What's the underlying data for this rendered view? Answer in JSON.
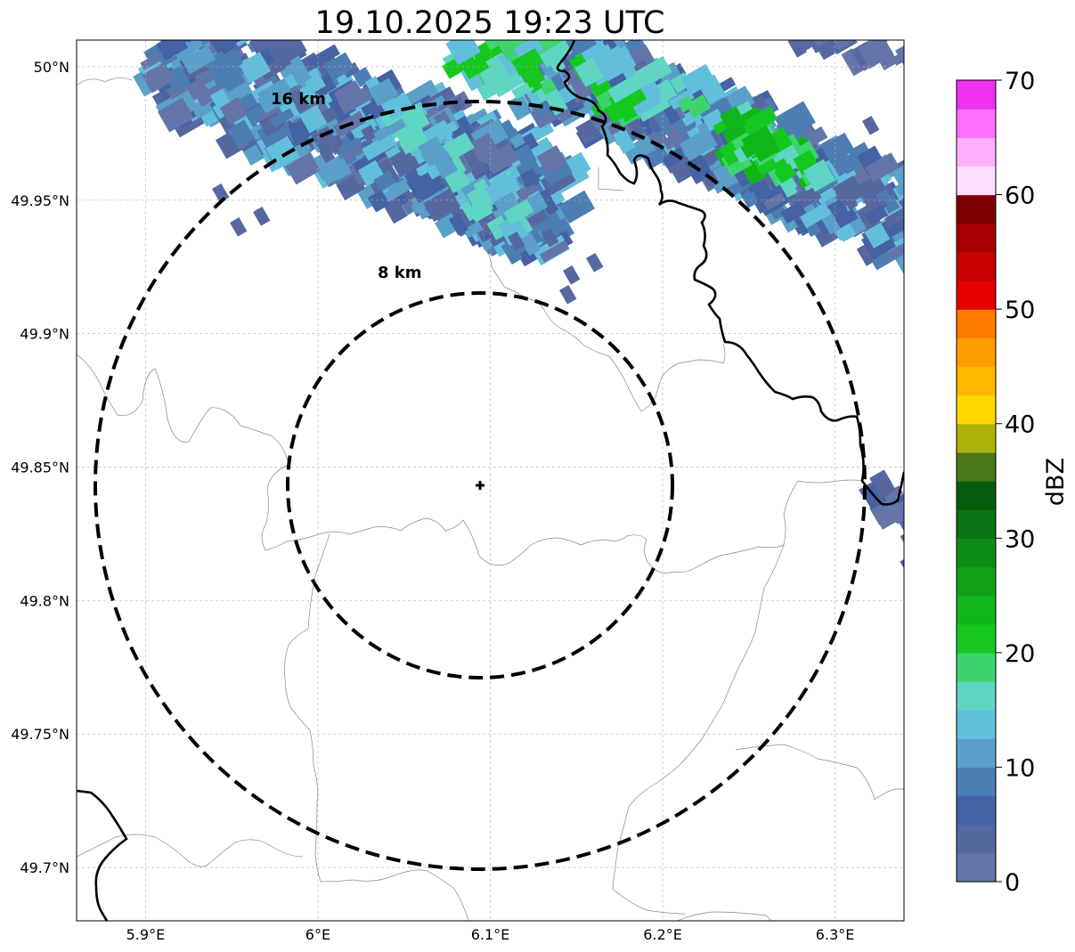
{
  "title": "19.10.2025 19:23 UTC",
  "map": {
    "lon_range": [
      5.86,
      6.34
    ],
    "lat_range": [
      49.68,
      50.01
    ],
    "center": {
      "lon": 6.095,
      "lat": 49.843
    },
    "lon_ticks": [
      {
        "value": 5.9,
        "label": "5.9°E"
      },
      {
        "value": 6.0,
        "label": "6°E"
      },
      {
        "value": 6.1,
        "label": "6.1°E"
      },
      {
        "value": 6.2,
        "label": "6.2°E"
      },
      {
        "value": 6.3,
        "label": "6.3°E"
      }
    ],
    "lat_ticks": [
      {
        "value": 50.0,
        "label": "50°N"
      },
      {
        "value": 49.95,
        "label": "49.95°N"
      },
      {
        "value": 49.9,
        "label": "49.9°N"
      },
      {
        "value": 49.85,
        "label": "49.85°N"
      },
      {
        "value": 49.8,
        "label": "49.8°N"
      },
      {
        "value": 49.75,
        "label": "49.75°N"
      },
      {
        "value": 49.7,
        "label": "49.7°N"
      }
    ],
    "rings": [
      {
        "radius_km": 8,
        "label": "8 km"
      },
      {
        "radius_km": 16,
        "label": "16 km"
      }
    ],
    "grid": true
  },
  "colorbar": {
    "label": "dBZ",
    "min": 0,
    "max": 70,
    "step": 2.5,
    "ticks": [
      {
        "value": 0,
        "label": "0"
      },
      {
        "value": 10,
        "label": "10"
      },
      {
        "value": 20,
        "label": "20"
      },
      {
        "value": 30,
        "label": "30"
      },
      {
        "value": 40,
        "label": "40"
      },
      {
        "value": 50,
        "label": "50"
      },
      {
        "value": 60,
        "label": "60"
      },
      {
        "value": 70,
        "label": "70"
      }
    ],
    "colors": [
      "#6475a8",
      "#5668a0",
      "#4562a4",
      "#4c7db3",
      "#5a9fc8",
      "#62bfdc",
      "#5fd6c3",
      "#3dd46e",
      "#14c81f",
      "#10b61a",
      "#0fa017",
      "#0d8c15",
      "#0b7314",
      "#065c0c",
      "#48781a",
      "#adb308",
      "#fed800",
      "#ffb800",
      "#ff9c00",
      "#ff7b00",
      "#e60000",
      "#c80000",
      "#a50000",
      "#7d0000",
      "#fedcfe",
      "#ffaffe",
      "#ff6ffe",
      "#f031f1"
    ]
  }
}
